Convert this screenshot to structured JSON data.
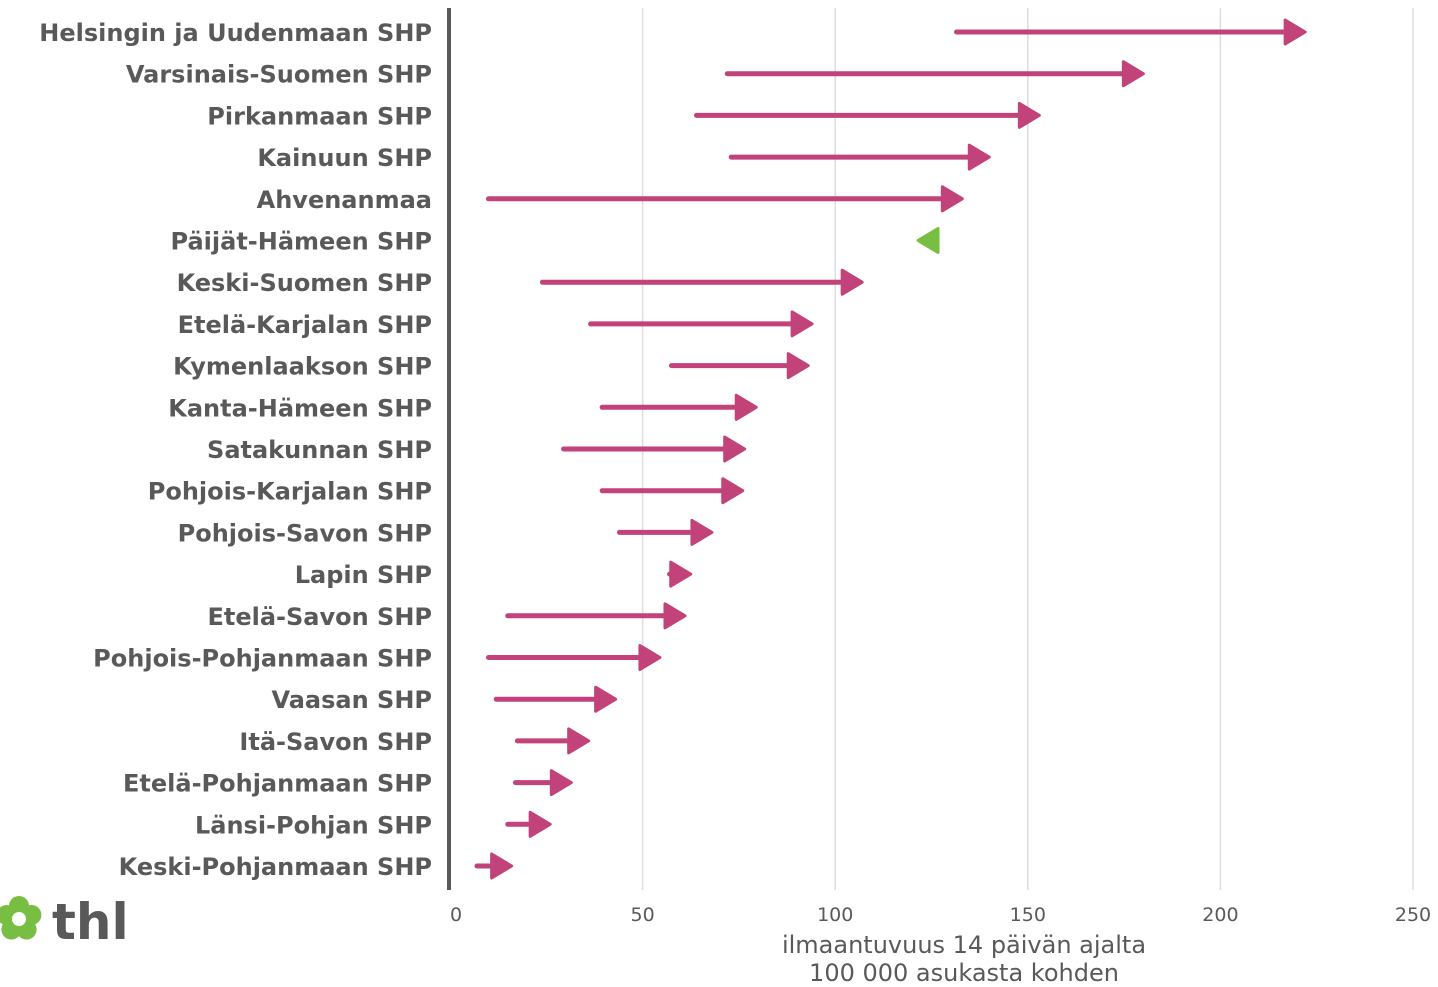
{
  "chart_data": {
    "type": "arrow",
    "categories": [
      "Helsingin ja Uudenmaan SHP",
      "Varsinais-Suomen SHP",
      "Pirkanmaan SHP",
      "Kainuun SHP",
      "Ahvenanmaa",
      "Päijät-Hämeen SHP",
      "Keski-Suomen SHP",
      "Etelä-Karjalan SHP",
      "Kymenlaakson SHP",
      "Kanta-Hämeen SHP",
      "Satakunnan SHP",
      "Pohjois-Karjalan SHP",
      "Pohjois-Savon SHP",
      "Lapin SHP",
      "Etelä-Savon SHP",
      "Pohjois-Pohjanmaan SHP",
      "Vaasan SHP",
      "Itä-Savon SHP",
      "Etelä-Pohjanmaan SHP",
      "Länsi-Pohjan SHP",
      "Keski-Pohjanmaan SHP"
    ],
    "start": [
      131.5,
      72,
      64,
      73,
      10,
      125.5,
      24,
      36.5,
      57.5,
      39.5,
      29.5,
      39.5,
      44,
      57,
      15,
      10,
      12,
      17.5,
      17,
      15,
      7
    ],
    "end": [
      222,
      180,
      153,
      140,
      133,
      121.5,
      107,
      94,
      93,
      79.5,
      76.5,
      76,
      68,
      62.5,
      61,
      54.5,
      43,
      36,
      31.5,
      26,
      16
    ],
    "xlabel": "ilmaantuvuus 14 päivän ajalta 100 000 asukasta kohden",
    "xlabel_lines": [
      "ilmaantuvuus 14 päivän ajalta",
      "100 000 asukasta kohden"
    ],
    "xlim": [
      0,
      250
    ],
    "xticks": [
      0,
      50,
      100,
      150,
      200,
      250
    ],
    "grid": "vertical",
    "colors": {
      "increase": "#c2427a",
      "decrease": "#78be43"
    }
  },
  "logo": {
    "text": "thl"
  }
}
